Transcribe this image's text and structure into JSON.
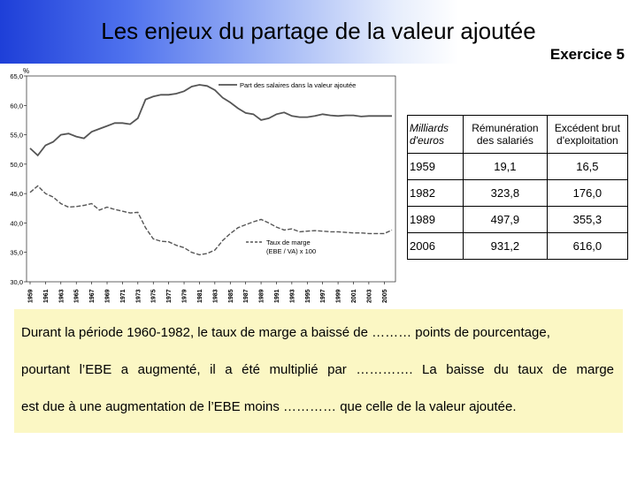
{
  "slide": {
    "title": "Les enjeux du partage de la valeur ajoutée",
    "exercise": "Exercice 5",
    "header_gradient": [
      "#1e3fd8",
      "#ffffff"
    ],
    "exercise_box_color": "#fbf7c4"
  },
  "chart_data": {
    "type": "line",
    "ylabel": "%",
    "ylim": [
      30,
      65
    ],
    "yticks": [
      "65,0",
      "60,0",
      "55,0",
      "50,0",
      "45,0",
      "40,0",
      "35,0",
      "30,0"
    ],
    "xticks": [
      "1959",
      "1961",
      "1963",
      "1965",
      "1967",
      "1969",
      "1971",
      "1973",
      "1975",
      "1977",
      "1979",
      "1981",
      "1983",
      "1985",
      "1987",
      "1989",
      "1991",
      "1993",
      "1995",
      "1997",
      "1999",
      "2001",
      "2003",
      "2005"
    ],
    "x": [
      1959,
      1960,
      1961,
      1962,
      1963,
      1964,
      1965,
      1966,
      1967,
      1968,
      1969,
      1970,
      1971,
      1972,
      1973,
      1974,
      1975,
      1976,
      1977,
      1978,
      1979,
      1980,
      1981,
      1982,
      1983,
      1984,
      1985,
      1986,
      1987,
      1988,
      1989,
      1990,
      1991,
      1992,
      1993,
      1994,
      1995,
      1996,
      1997,
      1998,
      1999,
      2000,
      2001,
      2002,
      2003,
      2004,
      2005,
      2006
    ],
    "series": [
      {
        "name": "Part des salaires dans la valeur ajoutée",
        "style": "solid",
        "values": [
          52.7,
          51.5,
          53.2,
          53.8,
          55.0,
          55.2,
          54.7,
          54.4,
          55.5,
          56.0,
          56.5,
          57.0,
          57.0,
          56.8,
          57.8,
          61.0,
          61.5,
          61.8,
          61.8,
          62.0,
          62.4,
          63.2,
          63.5,
          63.3,
          62.6,
          61.3,
          60.5,
          59.5,
          58.7,
          58.5,
          57.5,
          57.8,
          58.5,
          58.8,
          58.2,
          58.0,
          58.0,
          58.2,
          58.5,
          58.3,
          58.2,
          58.3,
          58.3,
          58.1,
          58.2,
          58.2,
          58.2,
          58.2
        ]
      },
      {
        "name": "Taux de marge (EBE / VA) x 100",
        "style": "dashed",
        "values": [
          45.2,
          46.3,
          45.0,
          44.4,
          43.3,
          42.7,
          42.8,
          43.0,
          43.3,
          42.2,
          42.7,
          42.3,
          42.0,
          41.7,
          41.8,
          39.2,
          37.3,
          36.9,
          36.8,
          36.2,
          35.8,
          35.0,
          34.6,
          34.8,
          35.4,
          37.0,
          38.2,
          39.2,
          39.7,
          40.2,
          40.6,
          40.0,
          39.3,
          38.8,
          39.0,
          38.5,
          38.6,
          38.7,
          38.6,
          38.5,
          38.5,
          38.4,
          38.3,
          38.3,
          38.2,
          38.2,
          38.2,
          38.8
        ]
      }
    ]
  },
  "table": {
    "header": [
      "Milliards d'euros",
      "Rémunération des salariés",
      "Excédent brut d'exploitation"
    ],
    "rows": [
      [
        "1959",
        "19,1",
        "16,5"
      ],
      [
        "1982",
        "323,8",
        "176,0"
      ],
      [
        "1989",
        "497,9",
        "355,3"
      ],
      [
        "2006",
        "931,2",
        "616,0"
      ]
    ]
  },
  "exercise_text": {
    "line1": "Durant la période 1960-1982, le taux de marge a baissé de ……… points de pourcentage,",
    "line2": "pourtant l’EBE a augmenté, il a été multiplié par …………. La baisse du taux de marge",
    "line3": "est due à une augmentation de l’EBE moins ………… que celle de la valeur ajoutée."
  }
}
